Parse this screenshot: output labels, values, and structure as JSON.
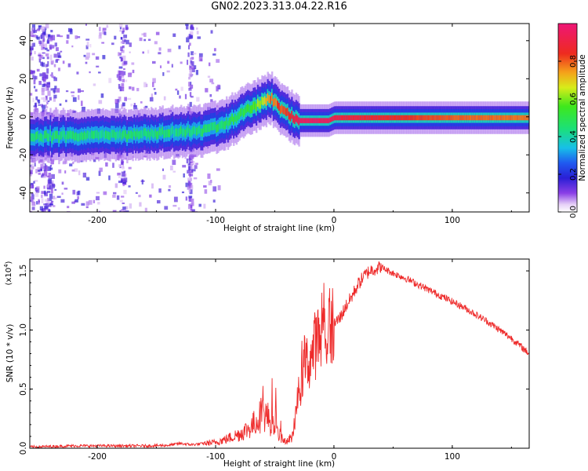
{
  "figure_title": "GN02.2023.313.04.22.R16",
  "chart_data": [
    {
      "type": "heatmap",
      "title": "",
      "xlabel": "Height of straight line (km)",
      "ylabel": "Frequency (Hz)",
      "xlim": [
        -257,
        165
      ],
      "ylim": [
        -50,
        49
      ],
      "x_ticks": [
        -200,
        -100,
        0,
        100
      ],
      "y_ticks": [
        -40,
        -20,
        0,
        20,
        40
      ],
      "grid": false,
      "colorbar": {
        "label": "Normalized spectral amplitude",
        "range": [
          0.0,
          1.0
        ],
        "ticks": [
          "0.0",
          "0.2",
          "0.4",
          "0.6",
          "0.8"
        ],
        "colormap": "rainbow (white-violet-blue-cyan-green-yellow-red-magenta)"
      },
      "ridge": {
        "x": [
          -257,
          -230,
          -200,
          -170,
          -140,
          -120,
          -100,
          -90,
          -80,
          -70,
          -60,
          -55,
          -50,
          -45,
          -40,
          -35,
          -30,
          -25,
          -20,
          -10,
          -5,
          0,
          20,
          50,
          100,
          165
        ],
        "center_hz": [
          -10.5,
          -10.0,
          -10.0,
          -9.5,
          -8.5,
          -7.5,
          -5.5,
          -3.0,
          1.0,
          5.0,
          8.5,
          9.5,
          7.5,
          4.5,
          2.0,
          -0.5,
          -2.0,
          -2.0,
          -2.0,
          -2.0,
          -2.0,
          -0.5,
          -0.5,
          -0.5,
          -0.5,
          -0.5
        ],
        "peak_amplitude": [
          0.45,
          0.45,
          0.45,
          0.45,
          0.45,
          0.45,
          0.45,
          0.47,
          0.5,
          0.55,
          0.65,
          0.75,
          0.78,
          0.8,
          0.85,
          0.9,
          0.95,
          0.95,
          0.95,
          0.95,
          0.95,
          0.9,
          0.88,
          0.85,
          0.8,
          0.78
        ]
      }
    },
    {
      "type": "line",
      "title": "",
      "xlabel": "Height of straight line (km)",
      "ylabel": "SNR (10 * v/v)",
      "y_multiplier_label": "(x10",
      "y_multiplier_exponent": "4",
      "y_multiplier_suffix": ")",
      "xlim": [
        -257,
        165
      ],
      "ylim": [
        0,
        1.6
      ],
      "x_ticks": [
        -200,
        -100,
        0,
        100
      ],
      "y_ticks": [
        0.0,
        0.5,
        1.0,
        1.5
      ],
      "y_tick_labels": [
        "0.0",
        "0.5",
        "1.0",
        "1.5"
      ],
      "grid": false,
      "color": "#ee2b2b",
      "series": [
        {
          "x": [
            -257,
            -240,
            -220,
            -200,
            -180,
            -160,
            -140,
            -130,
            -120,
            -110,
            -100,
            -90,
            -80,
            -70,
            -60,
            -55,
            -50,
            -45,
            -40,
            -35,
            -30,
            -25,
            -20,
            -15,
            -10,
            -5,
            0,
            5,
            10,
            15,
            20,
            25,
            30,
            35,
            40,
            50,
            60,
            70,
            80,
            90,
            100,
            110,
            120,
            130,
            140,
            150,
            165
          ],
          "values": [
            0.01,
            0.015,
            0.02,
            0.02,
            0.02,
            0.02,
            0.025,
            0.04,
            0.03,
            0.04,
            0.05,
            0.08,
            0.12,
            0.18,
            0.3,
            0.25,
            0.15,
            0.1,
            0.05,
            0.1,
            0.45,
            0.7,
            0.75,
            0.9,
            0.95,
            1.0,
            1.05,
            1.1,
            1.2,
            1.28,
            1.38,
            1.45,
            1.5,
            1.52,
            1.53,
            1.48,
            1.44,
            1.39,
            1.34,
            1.29,
            1.24,
            1.19,
            1.13,
            1.07,
            1.0,
            0.93,
            0.8
          ]
        }
      ]
    }
  ]
}
